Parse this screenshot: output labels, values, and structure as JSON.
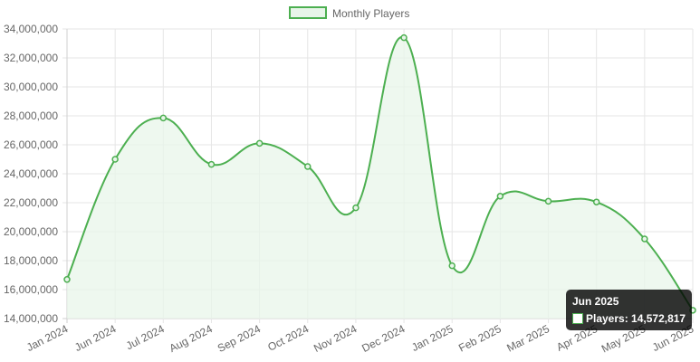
{
  "chart_data": {
    "type": "area",
    "title": "",
    "xlabel": "",
    "ylabel": "",
    "categories": [
      "Jan 2024",
      "Jun 2024",
      "Jul 2024",
      "Aug 2024",
      "Sep 2024",
      "Oct 2024",
      "Nov 2024",
      "Dec 2024",
      "Jan 2025",
      "Feb 2025",
      "Mar 2025",
      "Apr 2025",
      "May 2025",
      "Jun 2025"
    ],
    "series": [
      {
        "name": "Monthly Players",
        "values": [
          16700000,
          25000000,
          27850000,
          24650000,
          26100000,
          24500000,
          21650000,
          33400000,
          17650000,
          22450000,
          22100000,
          22050000,
          19500000,
          14572817
        ]
      }
    ],
    "ylim": [
      14000000,
      34000000
    ],
    "yticks": [
      14000000,
      16000000,
      18000000,
      20000000,
      22000000,
      24000000,
      26000000,
      28000000,
      30000000,
      32000000,
      34000000
    ],
    "ytick_labels": [
      "14,000,000",
      "16,000,000",
      "18,000,000",
      "20,000,000",
      "22,000,000",
      "24,000,000",
      "26,000,000",
      "28,000,000",
      "30,000,000",
      "32,000,000",
      "34,000,000"
    ],
    "grid": true,
    "legend": "top-center",
    "line_color": "#4caf50",
    "fill_color": "#e8f5e9"
  },
  "tooltip": {
    "title": "Jun 2025",
    "label": "Players: 14,572,817"
  }
}
